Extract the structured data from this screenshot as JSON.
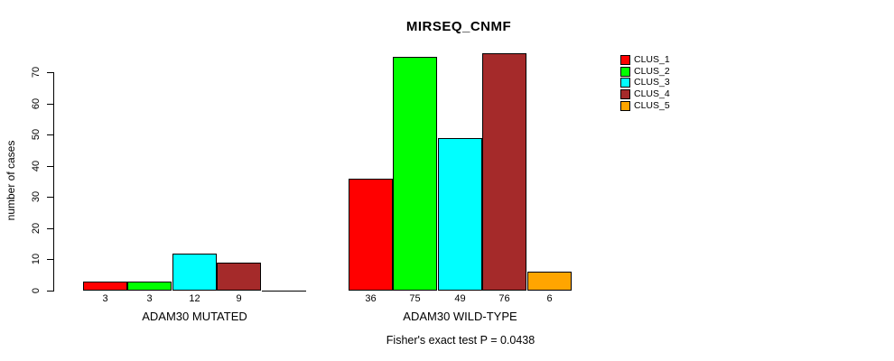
{
  "figure": {
    "title": "MIRSEQ_CNMF",
    "y_axis_label": "number of cases",
    "footer": "Fisher's exact test P = 0.0438"
  },
  "chart_data": {
    "type": "bar",
    "title": "MIRSEQ_CNMF",
    "xlabel": "",
    "ylabel": "number of cases",
    "ylim": [
      0,
      70
    ],
    "yticks": [
      0,
      10,
      20,
      30,
      40,
      50,
      60,
      70
    ],
    "grid": false,
    "legend_position": "right",
    "bar_value_labels": true,
    "categories": [
      "ADAM30 MUTATED",
      "ADAM30 WILD-TYPE"
    ],
    "series": [
      {
        "name": "CLUS_1",
        "color": "#FF0000",
        "values": [
          3,
          36
        ]
      },
      {
        "name": "CLUS_2",
        "color": "#00FF00",
        "values": [
          3,
          75
        ]
      },
      {
        "name": "CLUS_3",
        "color": "#00FFFF",
        "values": [
          12,
          49
        ]
      },
      {
        "name": "CLUS_4",
        "color": "#A52A2A",
        "values": [
          9,
          76
        ]
      },
      {
        "name": "CLUS_5",
        "color": "#FFA500",
        "values": [
          0,
          6
        ]
      }
    ],
    "annotation": "Fisher's exact test P = 0.0438"
  }
}
